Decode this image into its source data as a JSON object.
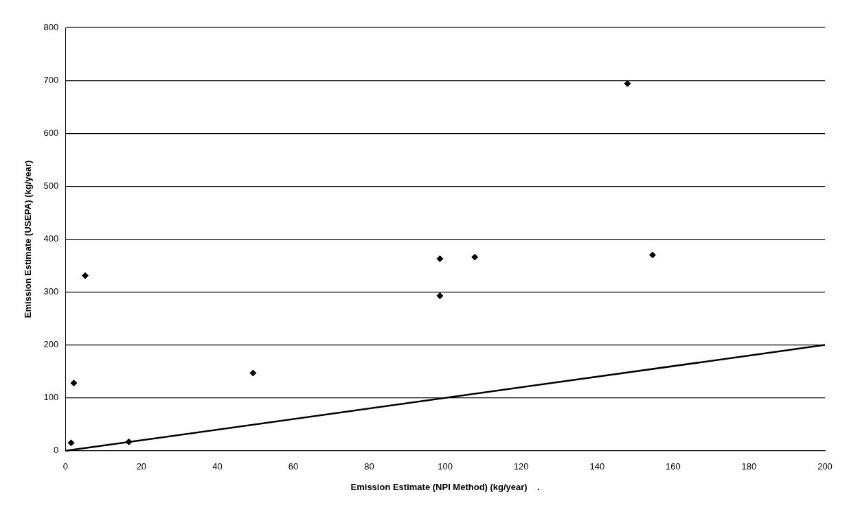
{
  "chart_data": {
    "type": "scatter",
    "xlabel": "Emission Estimate (NPI Method) (kg/year)    .",
    "ylabel": "Emission Estimate (USEPA) (kg/year)",
    "xlim": [
      0,
      200
    ],
    "xticks": [
      0,
      20,
      40,
      60,
      80,
      100,
      120,
      140,
      160,
      180,
      200
    ],
    "ylim": [
      0,
      800
    ],
    "yticks": [
      0,
      100,
      200,
      300,
      400,
      500,
      600,
      700,
      800
    ],
    "grid": "y",
    "legend": false,
    "marker": "diamond",
    "series": [
      {
        "type": "scatter",
        "color": "#000000",
        "x": [
          1.5,
          2.2,
          5.2,
          16.7,
          49.4,
          98.6,
          98.6,
          107.8,
          148,
          154.6
        ],
        "values": [
          15,
          128,
          331,
          17,
          147,
          363,
          293,
          366,
          694,
          370
        ]
      },
      {
        "type": "line",
        "color": "#000000",
        "marker": "none",
        "line_style": "solid",
        "x": [
          0,
          200
        ],
        "values": [
          0,
          200
        ]
      }
    ]
  }
}
